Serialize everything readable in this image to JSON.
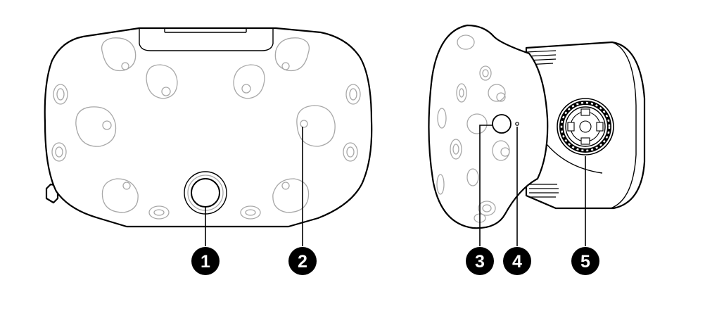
{
  "diagram": {
    "callouts": [
      {
        "id": 1,
        "label": "1"
      },
      {
        "id": 2,
        "label": "2"
      },
      {
        "id": 3,
        "label": "3"
      },
      {
        "id": 4,
        "label": "4"
      },
      {
        "id": 5,
        "label": "5"
      }
    ],
    "colors": {
      "outline": "#000000",
      "sensor": "#a8a8a8",
      "callout_fill": "#000000",
      "callout_text": "#ffffff",
      "background": "#ffffff"
    }
  }
}
